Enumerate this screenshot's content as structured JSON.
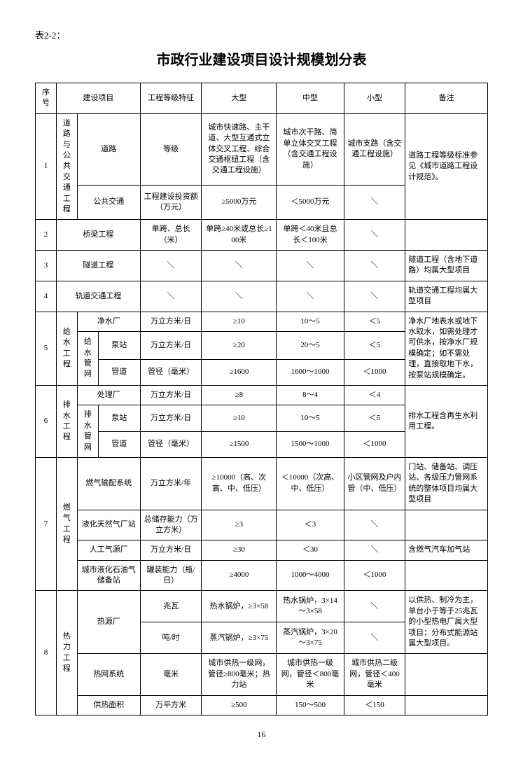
{
  "tableLabel": "表2-2：",
  "title": "市政行业建设项目设计规模划分表",
  "pageNumber": "16",
  "header": {
    "seq": "序号",
    "project": "建设项目",
    "character": "工程等级特征",
    "large": "大型",
    "medium": "中型",
    "small": "小型",
    "note": "备注"
  },
  "r1": {
    "seq": "1",
    "cat": "道路与公共交通工程",
    "a_sub": "道路",
    "a_char": "等级",
    "a_lg": "城市快速路、主干道、大型互通式立体交叉工程、综合交通枢纽工程（含交通工程设施）",
    "a_md": "城市次干路、简单立体交叉工程（含交通工程设施）",
    "a_sm": "城市支路（含交通工程设施）",
    "note": "道路工程等级标准参见《城市道路工程设计规范》。",
    "b_sub": "公共交通",
    "b_char": "工程建设投资额（万元）",
    "b_lg": "≥5000万元",
    "b_md": "＜5000万元",
    "b_sm": "＼"
  },
  "r2": {
    "seq": "2",
    "cat": "桥梁工程",
    "char": "单跨、总长（米）",
    "lg": "单跨≥40米或总长≥100米",
    "md": "单跨＜40米且总长＜100米",
    "sm": "＼",
    "note": ""
  },
  "r3": {
    "seq": "3",
    "cat": "隧道工程",
    "char": "＼",
    "lg": "＼",
    "md": "＼",
    "sm": "＼",
    "note": "隧道工程（含地下道路）均属大型项目"
  },
  "r4": {
    "seq": "4",
    "cat": "轨道交通工程",
    "char": "＼",
    "lg": "＼",
    "md": "＼",
    "sm": "＼",
    "note": "轨道交通工程均属大型项目"
  },
  "r5": {
    "seq": "5",
    "cat": "给水工程",
    "a_sub": "净水厂",
    "a_char": "万立方米/日",
    "a_lg": "≥10",
    "a_md": "10～5",
    "a_sm": "＜5",
    "b_cat": "给水管网",
    "b1_sub": "泵站",
    "b1_char": "万立方米/日",
    "b1_lg": "≥20",
    "b1_md": "20～5",
    "b1_sm": "＜5",
    "b2_sub": "管道",
    "b2_char": "管径（毫米）",
    "b2_lg": "≥1600",
    "b2_md": "1600～1000",
    "b2_sm": "＜1000",
    "note": "净水厂地表水或地下水取水，如需处理才可供水，按净水厂规模确定；如不需处理，直接取地下水，按泵站规模确定。"
  },
  "r6": {
    "seq": "6",
    "cat": "排水工程",
    "a_sub": "处理厂",
    "a_char": "万立方米/日",
    "a_lg": "≥8",
    "a_md": "8～4",
    "a_sm": "＜4",
    "b_cat": "排水管网",
    "b1_sub": "泵站",
    "b1_char": "万立方米/日",
    "b1_lg": "≥10",
    "b1_md": "10～5",
    "b1_sm": "＜5",
    "b2_sub": "管道",
    "b2_char": "管径（毫米）",
    "b2_lg": "≥1500",
    "b2_md": "1500～1000",
    "b2_sm": "＜1000",
    "note": "排水工程含再生水利用工程。"
  },
  "r7": {
    "seq": "7",
    "cat": "燃气工程",
    "a_sub": "燃气输配系统",
    "a_char": "万立方米/年",
    "a_lg": "≥10000（高、次高、中、低压）",
    "a_md": "＜10000（次高、中、低压）",
    "a_sm": "小区管网及户内管（中、低压）",
    "a_note": "门站、储备站、调压站、各级压力管网系统的整体项目均属大型项目",
    "b_sub": "液化天然气厂站",
    "b_char": "总储存能力（万立方米）",
    "b_lg": "≥3",
    "b_md": "＜3",
    "b_sm": "＼",
    "b_note": "",
    "c_sub": "人工气源厂",
    "c_char": "万立方米/日",
    "c_lg": "≥30",
    "c_md": "＜30",
    "c_sm": "＼",
    "c_note": "含燃气汽车加气站",
    "d_sub": "城市液化石油气储备站",
    "d_char": "罐装能力（瓶/日）",
    "d_lg": "≥4000",
    "d_md": "1000～4000",
    "d_sm": "＜1000",
    "d_note": ""
  },
  "r8": {
    "seq": "8",
    "cat": "热力工程",
    "a_sub": "热源厂",
    "a1_char": "兆瓦",
    "a1_lg": "热水锅炉，≥3×58",
    "a1_md": "热水锅炉，3×14～3×58",
    "a1_sm": "＼",
    "a2_char": "吨/时",
    "a2_lg": "蒸汽锅炉，≥3×75",
    "a2_md": "蒸汽锅炉，3×20～3×75",
    "a2_sm": "＼",
    "note": "以供热、制冷为主，单台小于等于25兆瓦的小型热电厂属大型项目；分布式能源站属大型项目。",
    "b_sub": "热网系统",
    "b_char": "毫米",
    "b_lg": "城市供热一级网，管径≥800毫米；热力站",
    "b_md": "城市供热一级网，管径＜800毫米",
    "b_sm": "城市供热二级网，管径＜400毫米",
    "c_sub": "供热面积",
    "c_char": "万平方米",
    "c_lg": "≥500",
    "c_md": "150～500",
    "c_sm": "＜150"
  }
}
